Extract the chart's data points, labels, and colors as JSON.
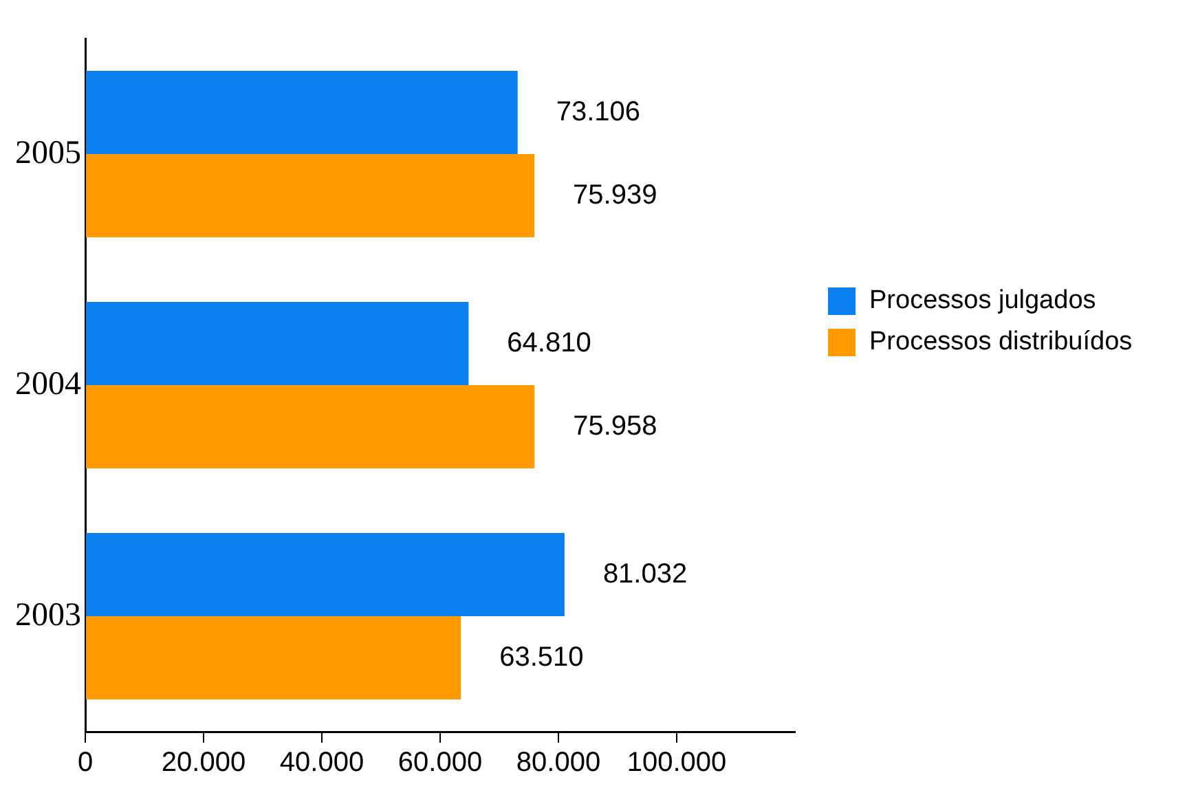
{
  "chart_data": {
    "type": "bar",
    "orientation": "horizontal",
    "categories": [
      "2005",
      "2004",
      "2003"
    ],
    "series": [
      {
        "name": "Processos julgados",
        "color": "#0a7ff0",
        "values": [
          73106,
          64810,
          81032
        ],
        "value_labels": [
          "73.106",
          "64.810",
          "81.032"
        ]
      },
      {
        "name": "Processos distribuídos",
        "color": "#ff9a00",
        "values": [
          75939,
          75958,
          63510
        ],
        "value_labels": [
          "75.939",
          "75.958",
          "63.510"
        ]
      }
    ],
    "xlim": [
      0,
      120000
    ],
    "xticks": [
      {
        "value": 0,
        "label": "0"
      },
      {
        "value": 20000,
        "label": "20.000"
      },
      {
        "value": 40000,
        "label": "40.000"
      },
      {
        "value": 60000,
        "label": "60.000"
      },
      {
        "value": 80000,
        "label": "80.000"
      },
      {
        "value": 100000,
        "label": "100.000"
      }
    ],
    "grid": false,
    "legend": "right"
  }
}
